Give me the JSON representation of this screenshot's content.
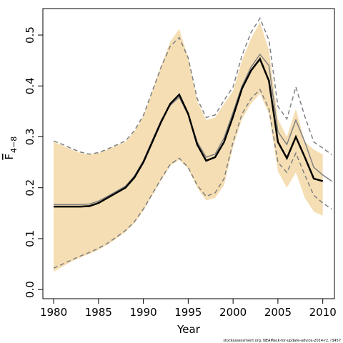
{
  "chart_data": {
    "type": "line",
    "xlabel": "Year",
    "ylabel": "F",
    "ylabel_subscript": "4−8",
    "footnote": "stockassessment.org, NEAMack-for-update-advice-2014-r2, r3457",
    "x": [
      1980,
      1981,
      1982,
      1983,
      1984,
      1985,
      1986,
      1987,
      1988,
      1989,
      1990,
      1991,
      1992,
      1993,
      1994,
      1995,
      1996,
      1997,
      1998,
      1999,
      2000,
      2001,
      2002,
      2003,
      2004,
      2005,
      2006,
      2007,
      2008,
      2009,
      2010,
      2011
    ],
    "xlim": [
      1978.8,
      2011.3
    ],
    "xticks": [
      1980,
      1985,
      1990,
      1995,
      2000,
      2005,
      2010
    ],
    "ylim": [
      -0.018,
      0.552
    ],
    "yticks": [
      {
        "value": 0,
        "label": "0.0"
      },
      0.1,
      0.2,
      0.3,
      0.4,
      0.5
    ],
    "band": {
      "color": "#f5deb3",
      "upper": [
        0.29,
        0.283,
        0.275,
        0.268,
        0.265,
        0.268,
        0.275,
        0.283,
        0.29,
        0.31,
        0.34,
        0.39,
        0.44,
        0.487,
        0.512,
        0.455,
        0.37,
        0.333,
        0.338,
        0.365,
        0.39,
        0.45,
        0.493,
        0.525,
        0.47,
        0.335,
        0.3,
        0.355,
        0.29,
        0.275,
        0.265,
        null
      ],
      "lower": [
        0.035,
        0.045,
        0.055,
        0.063,
        0.07,
        0.078,
        0.088,
        0.1,
        0.113,
        0.13,
        0.155,
        0.185,
        0.215,
        0.243,
        0.255,
        0.237,
        0.2,
        0.175,
        0.18,
        0.205,
        0.28,
        0.335,
        0.365,
        0.385,
        0.345,
        0.232,
        0.2,
        0.23,
        0.18,
        0.153,
        0.145,
        null
      ]
    },
    "series": [
      {
        "color": "#808080",
        "dashed": true,
        "width": 1.5,
        "values": [
          0.292,
          0.285,
          0.277,
          0.27,
          0.266,
          0.269,
          0.276,
          0.284,
          0.292,
          0.312,
          0.342,
          0.39,
          0.438,
          0.478,
          0.495,
          0.455,
          0.375,
          0.338,
          0.343,
          0.372,
          0.398,
          0.46,
          0.505,
          0.533,
          0.49,
          0.36,
          0.335,
          0.398,
          0.34,
          0.29,
          0.278,
          0.265
        ]
      },
      {
        "color": "#808080",
        "dashed": true,
        "width": 1.5,
        "values": [
          0.042,
          0.05,
          0.058,
          0.066,
          0.073,
          0.081,
          0.091,
          0.103,
          0.116,
          0.133,
          0.158,
          0.188,
          0.218,
          0.246,
          0.258,
          0.24,
          0.205,
          0.183,
          0.19,
          0.218,
          0.29,
          0.345,
          0.375,
          0.393,
          0.355,
          0.25,
          0.23,
          0.268,
          0.225,
          0.185,
          0.17,
          0.158
        ]
      },
      {
        "color": "#808080",
        "dashed": false,
        "width": 1.5,
        "values": [
          0.167,
          0.167,
          0.167,
          0.167,
          0.168,
          0.174,
          0.183,
          0.193,
          0.203,
          0.223,
          0.253,
          0.293,
          0.333,
          0.362,
          0.378,
          0.343,
          0.29,
          0.26,
          0.266,
          0.298,
          0.348,
          0.4,
          0.437,
          0.462,
          0.44,
          0.31,
          0.285,
          0.333,
          0.29,
          0.24,
          0.225,
          0.213
        ]
      },
      {
        "color": "#000000",
        "dashed": false,
        "width": 2.5,
        "values": [
          0.163,
          0.163,
          0.163,
          0.163,
          0.164,
          0.17,
          0.18,
          0.19,
          0.2,
          0.22,
          0.25,
          0.29,
          0.33,
          0.365,
          0.383,
          0.345,
          0.285,
          0.253,
          0.26,
          0.29,
          0.34,
          0.395,
          0.43,
          0.453,
          0.41,
          0.29,
          0.258,
          0.3,
          0.26,
          0.218,
          0.213,
          null
        ]
      }
    ]
  }
}
